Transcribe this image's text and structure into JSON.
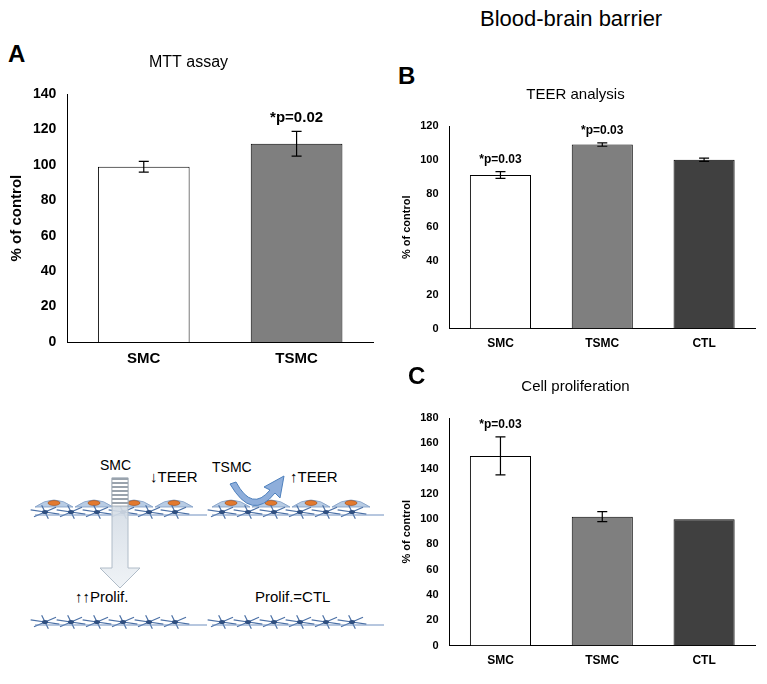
{
  "header": {
    "title": "Blood-brain barrier"
  },
  "chart_data": [
    {
      "panel": "A",
      "type": "bar",
      "title": "MTT assay",
      "y_label": "% of control",
      "categories": [
        "SMC",
        "TSMC"
      ],
      "values": [
        99,
        112
      ],
      "errors": [
        3,
        7
      ],
      "colors": [
        "#ffffff",
        "#7f7f7f"
      ],
      "ylim": [
        0,
        140
      ],
      "yticks": [
        0,
        20,
        40,
        60,
        80,
        100,
        120,
        140
      ],
      "grid": false,
      "annotations": [
        {
          "category": "TSMC",
          "text": "*p=0.02"
        }
      ]
    },
    {
      "panel": "B",
      "type": "bar",
      "title": "TEER analysis",
      "y_label": "% of control",
      "categories": [
        "SMC",
        "TSMC",
        "CTL"
      ],
      "values": [
        91,
        109,
        100
      ],
      "errors": [
        2,
        1,
        1
      ],
      "colors": [
        "#ffffff",
        "#7f7f7f",
        "#404040"
      ],
      "ylim": [
        0,
        120
      ],
      "yticks": [
        0,
        20,
        40,
        60,
        80,
        100,
        120
      ],
      "grid": false,
      "annotations": [
        {
          "category": "SMC",
          "text": "*p=0.03"
        },
        {
          "category": "TSMC",
          "text": "*p=0.03"
        }
      ]
    },
    {
      "panel": "C",
      "type": "bar",
      "title": "Cell proliferation",
      "y_label": "% of control",
      "categories": [
        "SMC",
        "TSMC",
        "CTL"
      ],
      "values": [
        150,
        102,
        100
      ],
      "errors": [
        15,
        4,
        null
      ],
      "colors": [
        "#ffffff",
        "#7f7f7f",
        "#404040"
      ],
      "ylim": [
        0,
        180
      ],
      "yticks": [
        0,
        20,
        40,
        60,
        80,
        100,
        120,
        140,
        160,
        180
      ],
      "grid": false,
      "annotations": [
        {
          "category": "SMC",
          "text": "*p=0.03"
        }
      ]
    }
  ],
  "diagram": {
    "left": {
      "treatment": "SMC",
      "teer": "↓TEER",
      "proliferation": "↑↑Prolif."
    },
    "right": {
      "treatment": "TSMC",
      "teer": "↑TEER",
      "proliferation": "Prolif.=CTL"
    }
  }
}
